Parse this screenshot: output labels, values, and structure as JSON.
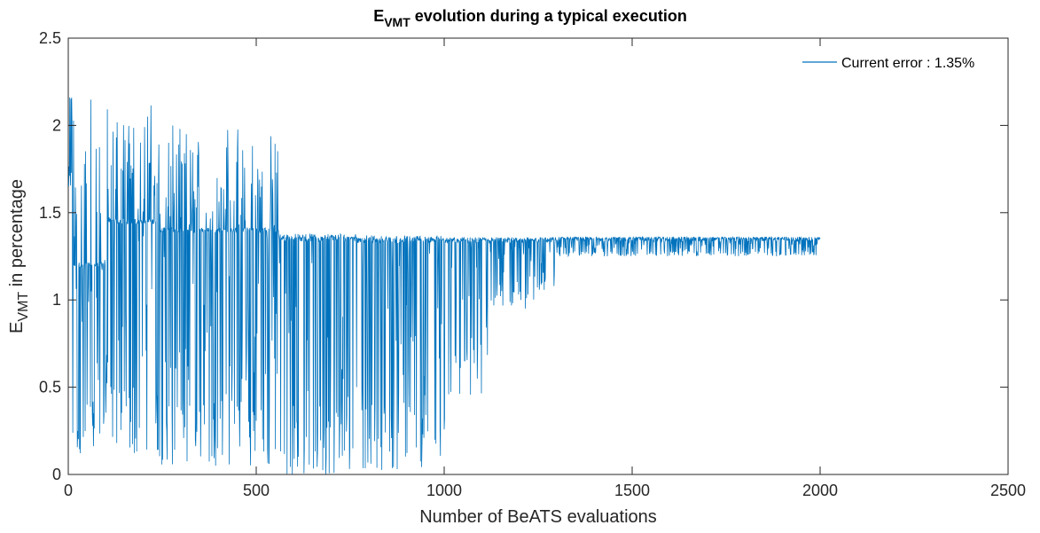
{
  "chart_data": {
    "type": "line",
    "title_main": "E",
    "title_sub": "VMT",
    "title_rest": " evolution during a typical execution",
    "xlabel": "Number of BeATS evaluations",
    "ylabel_main": "E",
    "ylabel_sub": "VMT",
    "ylabel_rest": " in percentage",
    "xlim": [
      0,
      2500
    ],
    "ylim": [
      0,
      2.5
    ],
    "xticks": [
      0,
      500,
      1000,
      1500,
      2000,
      2500
    ],
    "xtick_labels": [
      "0",
      "500",
      "1000",
      "1500",
      "2000",
      "2500"
    ],
    "yticks": [
      0,
      0.5,
      1,
      1.5,
      2,
      2.5
    ],
    "ytick_labels": [
      "0",
      "0.5",
      "1",
      "1.5",
      "2",
      "2.5"
    ],
    "grid": false,
    "legend_position": "top-right",
    "series_color": "#0072BD",
    "series": [
      {
        "name": "Current error : 1.35%",
        "x_start": 1,
        "x_end": 2000,
        "final_value": 1.35,
        "segments": [
          {
            "from": 1,
            "to": 10,
            "base": 2.15,
            "low": 1.6,
            "high": 2.16
          },
          {
            "from": 10,
            "to": 100,
            "base": 1.2,
            "low": 0.12,
            "high": 2.15
          },
          {
            "from": 100,
            "to": 240,
            "base": 1.45,
            "low": 0.1,
            "high": 2.14
          },
          {
            "from": 240,
            "to": 460,
            "base": 1.4,
            "low": 0.05,
            "high": 2.0
          },
          {
            "from": 460,
            "to": 560,
            "base": 1.4,
            "low": 0.03,
            "high": 1.97
          },
          {
            "from": 560,
            "to": 770,
            "base": 1.35,
            "low": 0.0,
            "high": 1.38
          },
          {
            "from": 770,
            "to": 1010,
            "base": 1.34,
            "low": 0.02,
            "high": 1.37
          },
          {
            "from": 1010,
            "to": 1120,
            "base": 1.34,
            "low": 0.45,
            "high": 1.36
          },
          {
            "from": 1120,
            "to": 1240,
            "base": 1.34,
            "low": 0.95,
            "high": 1.36
          },
          {
            "from": 1240,
            "to": 1300,
            "base": 1.34,
            "low": 1.05,
            "high": 1.36
          },
          {
            "from": 1300,
            "to": 1340,
            "base": 1.35,
            "low": 1.25,
            "high": 1.36
          },
          {
            "from": 1340,
            "to": 2000,
            "base": 1.35,
            "low": 1.25,
            "high": 1.36
          }
        ]
      }
    ]
  }
}
